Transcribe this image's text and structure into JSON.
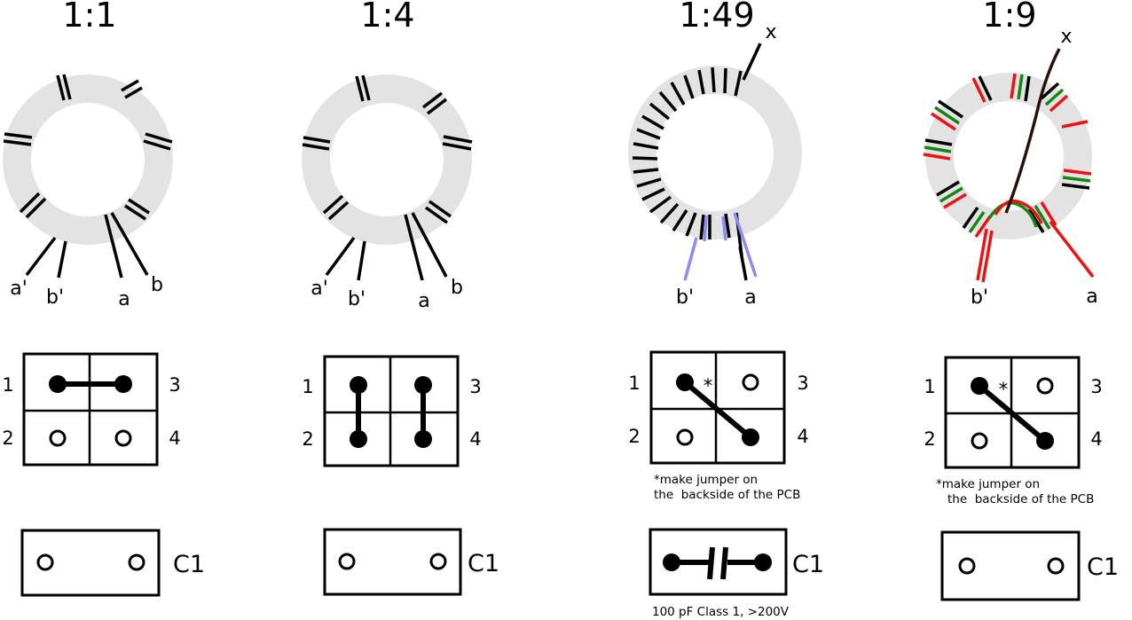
{
  "colors": {
    "core": "#e3e3e3",
    "winding": "#000000",
    "secondary_winding": "#8c8cf0",
    "red_winding": "#ee1111",
    "green_winding": "#118811",
    "dark_wire": "#2a0e0e"
  },
  "panels": [
    {
      "ratio": "1:1",
      "leads": [
        "a'",
        "b'",
        "a",
        "b"
      ],
      "pads": [
        "1",
        "2",
        "3",
        "4"
      ],
      "jumper": "1-3 and 2-4 unused (pads 1 to 3 bridged)",
      "note_line1": "",
      "note_line2": "",
      "cap_label": "C1",
      "cap_note": "",
      "cap_populated": false
    },
    {
      "ratio": "1:4",
      "leads": [
        "a'",
        "b'",
        "a",
        "b"
      ],
      "pads": [
        "1",
        "2",
        "3",
        "4"
      ],
      "jumper": "1-2 and 3-4 bridged",
      "note_line1": "",
      "note_line2": "",
      "cap_label": "C1",
      "cap_note": "",
      "cap_populated": false
    },
    {
      "ratio": "1:49",
      "leads": [
        "x",
        "b'",
        "a"
      ],
      "pads": [
        "1",
        "2",
        "3",
        "4"
      ],
      "jumper": "1-4 diagonal jumper",
      "jumper_mark": "*",
      "note_line1": "*make jumper on",
      "note_line2": "the  backside of the PCB",
      "cap_label": "C1",
      "cap_note": "100 pF Class 1, >200V",
      "cap_populated": true
    },
    {
      "ratio": "1:9",
      "leads": [
        "x",
        "b'",
        "a"
      ],
      "pads": [
        "1",
        "2",
        "3",
        "4"
      ],
      "jumper": "1-4 diagonal jumper",
      "jumper_mark": "*",
      "note_line1": "*make jumper on",
      "note_line2": "the  backside of the PCB",
      "cap_label": "C1",
      "cap_note": "",
      "cap_populated": false
    }
  ]
}
